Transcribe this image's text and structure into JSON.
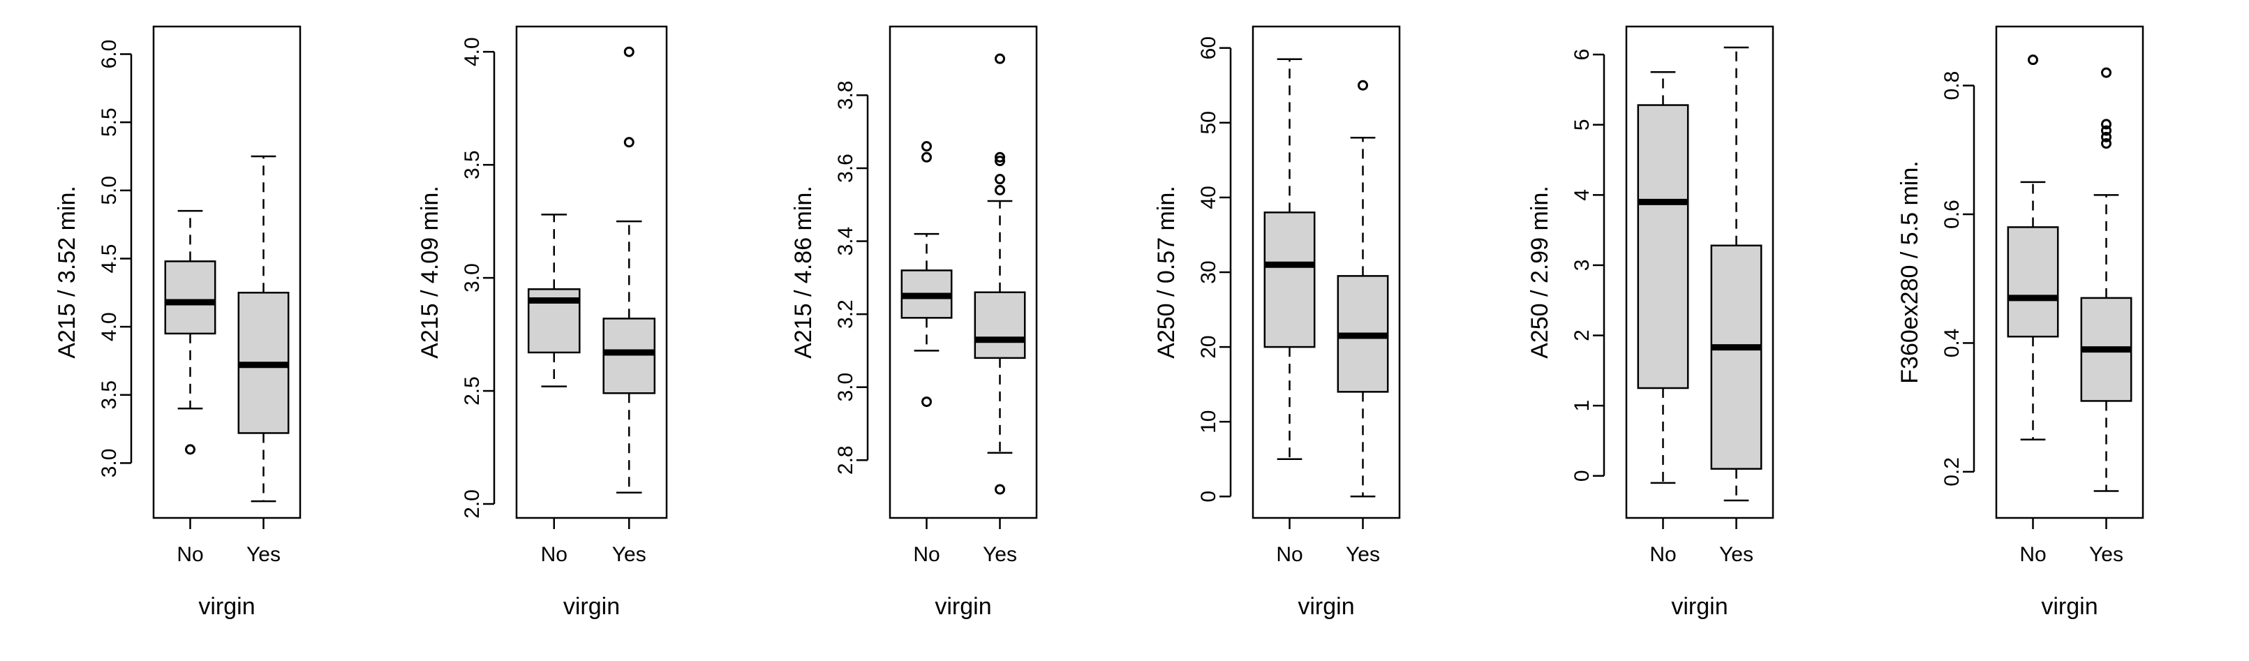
{
  "chart_data": [
    {
      "type": "box",
      "xlabel": "virgin",
      "ylabel": "A215 / 3.52 min.",
      "categories": [
        "No",
        "Yes"
      ],
      "ylim": [
        2.7,
        6.1
      ],
      "yticks": [
        "3.0",
        "3.5",
        "4.0",
        "4.5",
        "5.0",
        "5.5",
        "6.0"
      ],
      "grid": false,
      "boxes": [
        {
          "category": "No",
          "whisker_low": 3.4,
          "q1": 3.95,
          "median": 4.18,
          "q3": 4.48,
          "whisker_high": 4.85,
          "outliers": [
            3.1
          ]
        },
        {
          "category": "Yes",
          "whisker_low": 2.72,
          "q1": 3.22,
          "median": 3.72,
          "q3": 4.25,
          "whisker_high": 5.25,
          "outliers": []
        }
      ]
    },
    {
      "type": "box",
      "xlabel": "virgin",
      "ylabel": "A215 / 4.09 min.",
      "categories": [
        "No",
        "Yes"
      ],
      "ylim": [
        2.0,
        4.05
      ],
      "yticks": [
        "2.0",
        "2.5",
        "3.0",
        "3.5",
        "4.0"
      ],
      "grid": false,
      "boxes": [
        {
          "category": "No",
          "whisker_low": 2.52,
          "q1": 2.67,
          "median": 2.9,
          "q3": 2.95,
          "whisker_high": 3.28,
          "outliers": []
        },
        {
          "category": "Yes",
          "whisker_low": 2.05,
          "q1": 2.49,
          "median": 2.67,
          "q3": 2.82,
          "whisker_high": 3.25,
          "outliers": [
            3.6,
            4.0
          ]
        }
      ]
    },
    {
      "type": "box",
      "xlabel": "virgin",
      "ylabel": "A215 / 4.86 min.",
      "categories": [
        "No",
        "Yes"
      ],
      "ylim": [
        2.68,
        3.95
      ],
      "yticks": [
        "2.8",
        "3.0",
        "3.2",
        "3.4",
        "3.6",
        "3.8"
      ],
      "grid": false,
      "boxes": [
        {
          "category": "No",
          "whisker_low": 3.1,
          "q1": 3.19,
          "median": 3.25,
          "q3": 3.32,
          "whisker_high": 3.42,
          "outliers": [
            2.96,
            3.63,
            3.66
          ]
        },
        {
          "category": "Yes",
          "whisker_low": 2.82,
          "q1": 3.08,
          "median": 3.13,
          "q3": 3.26,
          "whisker_high": 3.51,
          "outliers": [
            2.72,
            3.54,
            3.57,
            3.62,
            3.63,
            3.9
          ]
        }
      ]
    },
    {
      "type": "box",
      "xlabel": "virgin",
      "ylabel": "A250 / 0.57 min.",
      "categories": [
        "No",
        "Yes"
      ],
      "ylim": [
        -1,
        61
      ],
      "yticks": [
        "0",
        "10",
        "20",
        "30",
        "40",
        "50",
        "60"
      ],
      "grid": false,
      "boxes": [
        {
          "category": "No",
          "whisker_low": 5,
          "q1": 20,
          "median": 31,
          "q3": 38,
          "whisker_high": 58.5,
          "outliers": []
        },
        {
          "category": "Yes",
          "whisker_low": 0,
          "q1": 14,
          "median": 21.5,
          "q3": 29.5,
          "whisker_high": 48,
          "outliers": [
            55
          ]
        }
      ]
    },
    {
      "type": "box",
      "xlabel": "virgin",
      "ylabel": "A250 / 2.99 min.",
      "categories": [
        "No",
        "Yes"
      ],
      "ylim": [
        -0.4,
        6.2
      ],
      "yticks": [
        "0",
        "1",
        "2",
        "3",
        "4",
        "5",
        "6"
      ],
      "grid": false,
      "boxes": [
        {
          "category": "No",
          "whisker_low": -0.1,
          "q1": 1.25,
          "median": 3.9,
          "q3": 5.28,
          "whisker_high": 5.75,
          "outliers": []
        },
        {
          "category": "Yes",
          "whisker_low": -0.35,
          "q1": 0.1,
          "median": 1.83,
          "q3": 3.28,
          "whisker_high": 6.1,
          "outliers": []
        }
      ]
    },
    {
      "type": "box",
      "xlabel": "virgin",
      "ylabel": "F360ex280 / 5.5 min.",
      "categories": [
        "No",
        "Yes"
      ],
      "ylim": [
        0.15,
        0.87
      ],
      "yticks": [
        "0.2",
        "0.4",
        "0.6",
        "0.8"
      ],
      "grid": false,
      "boxes": [
        {
          "category": "No",
          "whisker_low": 0.25,
          "q1": 0.41,
          "median": 0.47,
          "q3": 0.58,
          "whisker_high": 0.65,
          "outliers": [
            0.84
          ]
        },
        {
          "category": "Yes",
          "whisker_low": 0.17,
          "q1": 0.31,
          "median": 0.39,
          "q3": 0.47,
          "whisker_high": 0.63,
          "outliers": [
            0.71,
            0.72,
            0.73,
            0.74,
            0.82
          ]
        }
      ]
    }
  ]
}
